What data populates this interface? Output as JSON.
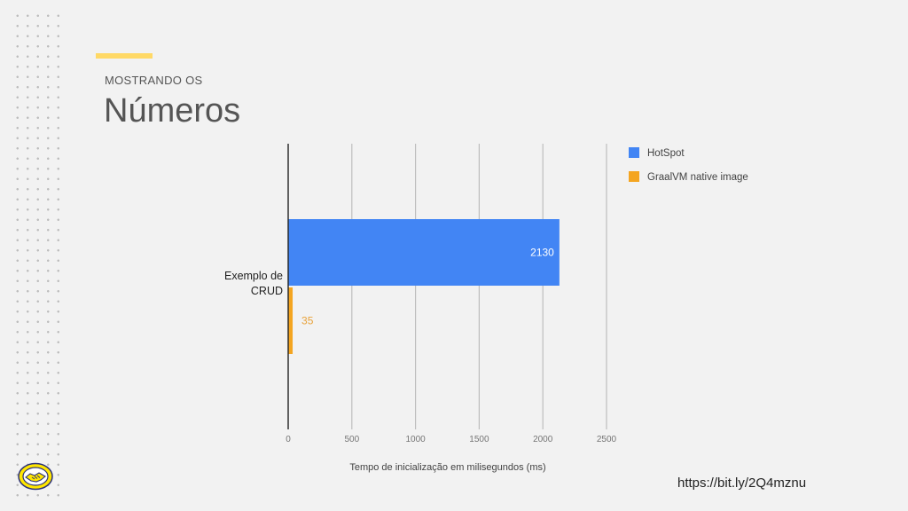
{
  "slide": {
    "eyebrow": "MOSTRANDO OS",
    "title": "Números",
    "url": "https://bit.ly/2Q4mznu",
    "accent_color": "#ffd966"
  },
  "logo": {
    "icon": "handshake-icon",
    "color": "#ffe600"
  },
  "chart_data": {
    "type": "bar",
    "orientation": "horizontal",
    "categories": [
      "Exemplo de CRUD"
    ],
    "category_label_lines": [
      [
        "Exemplo de",
        "CRUD"
      ]
    ],
    "series": [
      {
        "name": "HotSpot",
        "values": [
          2130
        ],
        "color": "#4285f4",
        "label_color": "#ffffff"
      },
      {
        "name": "GraalVM native image",
        "values": [
          35
        ],
        "color": "#f4a521",
        "label_color": "#e8a33c"
      }
    ],
    "xlabel": "Tempo de inicialização em milisegundos (ms)",
    "xlim": [
      0,
      2500
    ],
    "xticks": [
      "0",
      "500",
      "1000",
      "1500",
      "2000",
      "2500"
    ],
    "grid": true,
    "legend": "right-top"
  }
}
